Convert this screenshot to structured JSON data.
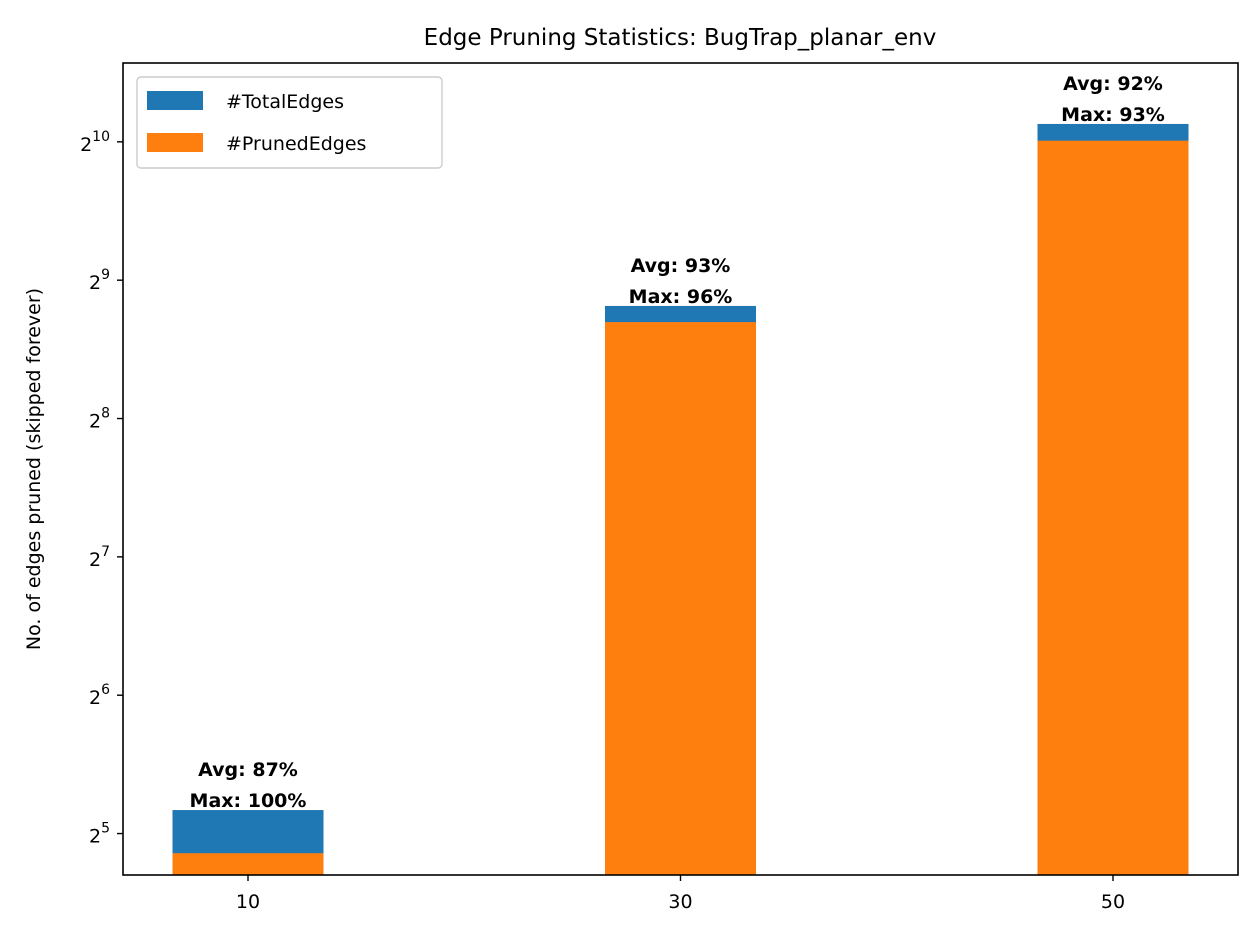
{
  "chart_data": {
    "type": "bar",
    "title": "Edge Pruning Statistics: BugTrap_planar_env",
    "xlabel": "",
    "ylabel": "No. of edges pruned (skipped forever)",
    "categories": [
      "10",
      "30",
      "50"
    ],
    "y_scale": "log2",
    "ylim": [
      26,
      1520
    ],
    "y_ticks": [
      {
        "value": 32,
        "base": "2",
        "exp": "5"
      },
      {
        "value": 64,
        "base": "2",
        "exp": "6"
      },
      {
        "value": 128,
        "base": "2",
        "exp": "7"
      },
      {
        "value": 256,
        "base": "2",
        "exp": "8"
      },
      {
        "value": 512,
        "base": "2",
        "exp": "9"
      },
      {
        "value": 1024,
        "base": "2",
        "exp": "10"
      }
    ],
    "grid": false,
    "legend_position": "top-left",
    "series": [
      {
        "name": "#TotalEdges",
        "color": "#1f77b4",
        "values": [
          36,
          450,
          1120
        ]
      },
      {
        "name": "#PrunedEdges",
        "color": "#ff7f0e",
        "values": [
          29,
          415,
          1030
        ]
      }
    ],
    "annotations": [
      {
        "category": "10",
        "avg": "Avg: 87%",
        "max": "Max: 100%"
      },
      {
        "category": "30",
        "avg": "Avg: 93%",
        "max": "Max: 96%"
      },
      {
        "category": "50",
        "avg": "Avg: 92%",
        "max": "Max: 93%"
      }
    ]
  }
}
